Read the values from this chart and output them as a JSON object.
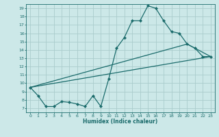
{
  "xlabel": "Humidex (Indice chaleur)",
  "bg_color": "#cce8e8",
  "grid_color": "#aacccc",
  "line_color": "#1a6b6b",
  "xlim": [
    -0.5,
    23.5
  ],
  "ylim": [
    6.5,
    19.5
  ],
  "xticks": [
    0,
    1,
    2,
    3,
    4,
    5,
    6,
    7,
    8,
    9,
    10,
    11,
    12,
    13,
    14,
    15,
    16,
    17,
    18,
    19,
    20,
    21,
    22,
    23
  ],
  "yticks": [
    7,
    8,
    9,
    10,
    11,
    12,
    13,
    14,
    15,
    16,
    17,
    18,
    19
  ],
  "series1_x": [
    0,
    1,
    2,
    3,
    4,
    5,
    6,
    7,
    8,
    9,
    10,
    11,
    12,
    13,
    14,
    15,
    16,
    17,
    18,
    19,
    20,
    21,
    22,
    23
  ],
  "series1_y": [
    9.5,
    8.5,
    7.2,
    7.2,
    7.8,
    7.7,
    7.5,
    7.2,
    8.5,
    7.2,
    10.5,
    14.2,
    15.5,
    17.5,
    17.5,
    19.3,
    19.0,
    17.5,
    16.2,
    16.0,
    14.7,
    14.2,
    13.2,
    13.2
  ],
  "series2_x": [
    0,
    23
  ],
  "series2_y": [
    9.5,
    13.2
  ],
  "series3_x": [
    0,
    20,
    23
  ],
  "series3_y": [
    9.5,
    14.7,
    13.2
  ],
  "lw": 0.9,
  "ms": 2.2
}
